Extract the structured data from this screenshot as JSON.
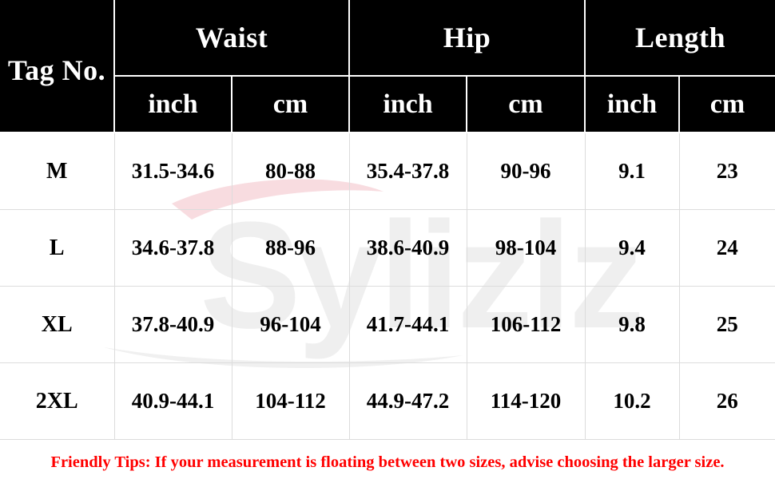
{
  "watermark": {
    "text": "Sylizlz",
    "color": "#e0e0e0",
    "swoosh_color": "#f3c6cc"
  },
  "table": {
    "tag_header": "Tag No.",
    "groups": [
      {
        "name": "Waist",
        "units": [
          "inch",
          "cm"
        ]
      },
      {
        "name": "Hip",
        "units": [
          "inch",
          "cm"
        ]
      },
      {
        "name": "Length",
        "units": [
          "inch",
          "cm"
        ]
      }
    ],
    "rows": [
      {
        "size": "M",
        "cells": [
          "31.5-34.6",
          "80-88",
          "35.4-37.8",
          "90-96",
          "9.1",
          "23"
        ]
      },
      {
        "size": "L",
        "cells": [
          "34.6-37.8",
          "88-96",
          "38.6-40.9",
          "98-104",
          "9.4",
          "24"
        ]
      },
      {
        "size": "XL",
        "cells": [
          "37.8-40.9",
          "96-104",
          "41.7-44.1",
          "106-112",
          "9.8",
          "25"
        ]
      },
      {
        "size": "2XL",
        "cells": [
          "40.9-44.1",
          "104-112",
          "44.9-47.2",
          "114-120",
          "10.2",
          "26"
        ]
      }
    ]
  },
  "tips": "Friendly Tips: If your measurement is floating between two sizes, advise choosing the larger size.",
  "colors": {
    "header_bg": "#000000",
    "header_text": "#ffffff",
    "tips_text": "#ff0000",
    "grid_line": "#dcdcdc"
  }
}
